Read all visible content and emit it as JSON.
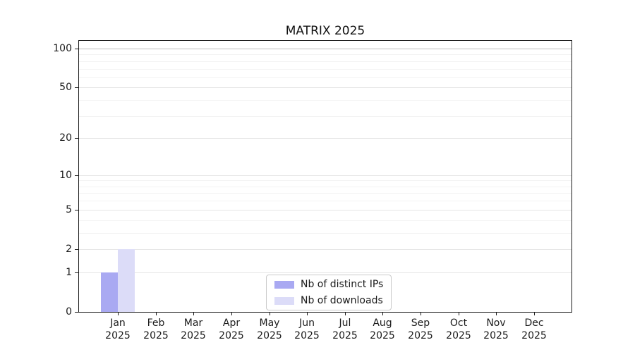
{
  "chart_data": {
    "type": "bar",
    "title": "MATRIX 2025",
    "categories": [
      "Jan",
      "Feb",
      "Mar",
      "Apr",
      "May",
      "Jun",
      "Jul",
      "Aug",
      "Sep",
      "Oct",
      "Nov",
      "Dec"
    ],
    "category_year": "2025",
    "series": [
      {
        "name": "Nb of distinct IPs",
        "color": "#a9a9f2",
        "values": [
          1,
          0,
          0,
          0,
          0,
          0,
          0,
          0,
          0,
          0,
          0,
          0
        ]
      },
      {
        "name": "Nb of downloads",
        "color": "#dcdcf8",
        "values": [
          2,
          0,
          0,
          0,
          0,
          0,
          0,
          0,
          0,
          0,
          0,
          0
        ]
      }
    ],
    "yticks": [
      0,
      1,
      2,
      5,
      10,
      20,
      50,
      100
    ],
    "yminor_gridlines": [
      3,
      4,
      6,
      7,
      8,
      9,
      30,
      40,
      60,
      70,
      80,
      90
    ],
    "yscale": "log1p",
    "ylim": [
      0,
      115
    ],
    "xlabel": "",
    "ylabel": "",
    "grid": "horizontal",
    "legend_position": "bottom-center-inside",
    "colors": {
      "axis": "#1a1a1a",
      "gridline_top": "#bcbcbc",
      "gridline_major": "#e4e4e4",
      "gridline_minor": "#f3f3f3"
    }
  }
}
